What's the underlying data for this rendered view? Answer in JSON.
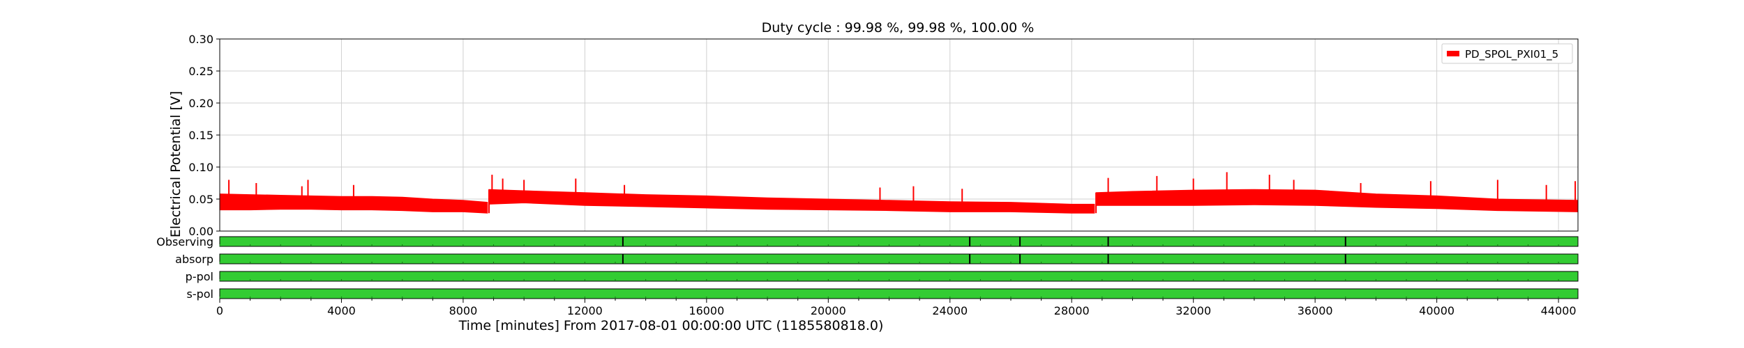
{
  "chart_data": [
    {
      "type": "line",
      "title": "Duty cycle : 99.98 %, 99.98 %, 100.00 %",
      "xlabel": "Time [minutes] From 2017-08-01 00:00:00 UTC (1185580818.0)",
      "ylabel": "Electrical Potential [V]",
      "xlim": [
        0,
        44640
      ],
      "ylim": [
        0,
        0.3
      ],
      "x_ticks": [
        0,
        4000,
        8000,
        12000,
        16000,
        20000,
        24000,
        28000,
        32000,
        36000,
        40000,
        44000
      ],
      "y_ticks": [
        0.0,
        0.05,
        0.1,
        0.15,
        0.2,
        0.25,
        0.3
      ],
      "y_tick_labels": [
        "0.00",
        "0.05",
        "0.10",
        "0.15",
        "0.20",
        "0.25",
        "0.30"
      ],
      "grid": true,
      "legend_position": "top-right",
      "series": [
        {
          "name": "PD_SPOL_PXI01_5",
          "color": "#ff0000",
          "x": [
            0,
            1000,
            2000,
            3000,
            4000,
            5000,
            6000,
            7000,
            8000,
            8800,
            8850,
            10000,
            12000,
            14000,
            16000,
            18000,
            20000,
            22000,
            24000,
            26000,
            28000,
            28750,
            28800,
            30000,
            32000,
            34000,
            36000,
            38000,
            40000,
            42000,
            44640
          ],
          "y_low": [
            0.033,
            0.033,
            0.034,
            0.034,
            0.033,
            0.033,
            0.032,
            0.03,
            0.03,
            0.028,
            0.042,
            0.044,
            0.04,
            0.038,
            0.036,
            0.034,
            0.033,
            0.032,
            0.03,
            0.03,
            0.028,
            0.028,
            0.04,
            0.04,
            0.04,
            0.041,
            0.04,
            0.037,
            0.035,
            0.032,
            0.03
          ],
          "y_high": [
            0.058,
            0.057,
            0.056,
            0.055,
            0.054,
            0.054,
            0.053,
            0.05,
            0.048,
            0.045,
            0.065,
            0.063,
            0.06,
            0.057,
            0.055,
            0.052,
            0.05,
            0.048,
            0.046,
            0.045,
            0.042,
            0.042,
            0.06,
            0.062,
            0.064,
            0.065,
            0.064,
            0.058,
            0.055,
            0.05,
            0.048
          ],
          "spikes": [
            [
              300,
              0.08
            ],
            [
              1200,
              0.075
            ],
            [
              2700,
              0.07
            ],
            [
              2900,
              0.08
            ],
            [
              4400,
              0.072
            ],
            [
              8950,
              0.088
            ],
            [
              9300,
              0.082
            ],
            [
              10000,
              0.08
            ],
            [
              11700,
              0.082
            ],
            [
              13300,
              0.072
            ],
            [
              21700,
              0.068
            ],
            [
              22800,
              0.07
            ],
            [
              24400,
              0.066
            ],
            [
              29200,
              0.083
            ],
            [
              30800,
              0.086
            ],
            [
              32000,
              0.082
            ],
            [
              33100,
              0.092
            ],
            [
              34500,
              0.088
            ],
            [
              35300,
              0.08
            ],
            [
              37500,
              0.075
            ],
            [
              39800,
              0.078
            ],
            [
              42000,
              0.08
            ],
            [
              43600,
              0.072
            ],
            [
              44550,
              0.078
            ]
          ]
        }
      ]
    },
    {
      "type": "state-bars",
      "rows": [
        {
          "label": "Observing",
          "color": "#33cc33",
          "gaps": [
            13250,
            24650,
            26300,
            29200,
            37000
          ]
        },
        {
          "label": "absorp",
          "color": "#33cc33",
          "gaps": [
            13250,
            24650,
            26300,
            29200,
            37000
          ]
        },
        {
          "label": "p-pol",
          "color": "#33cc33",
          "gaps": []
        },
        {
          "label": "s-pol",
          "color": "#33cc33",
          "gaps": []
        }
      ]
    }
  ]
}
